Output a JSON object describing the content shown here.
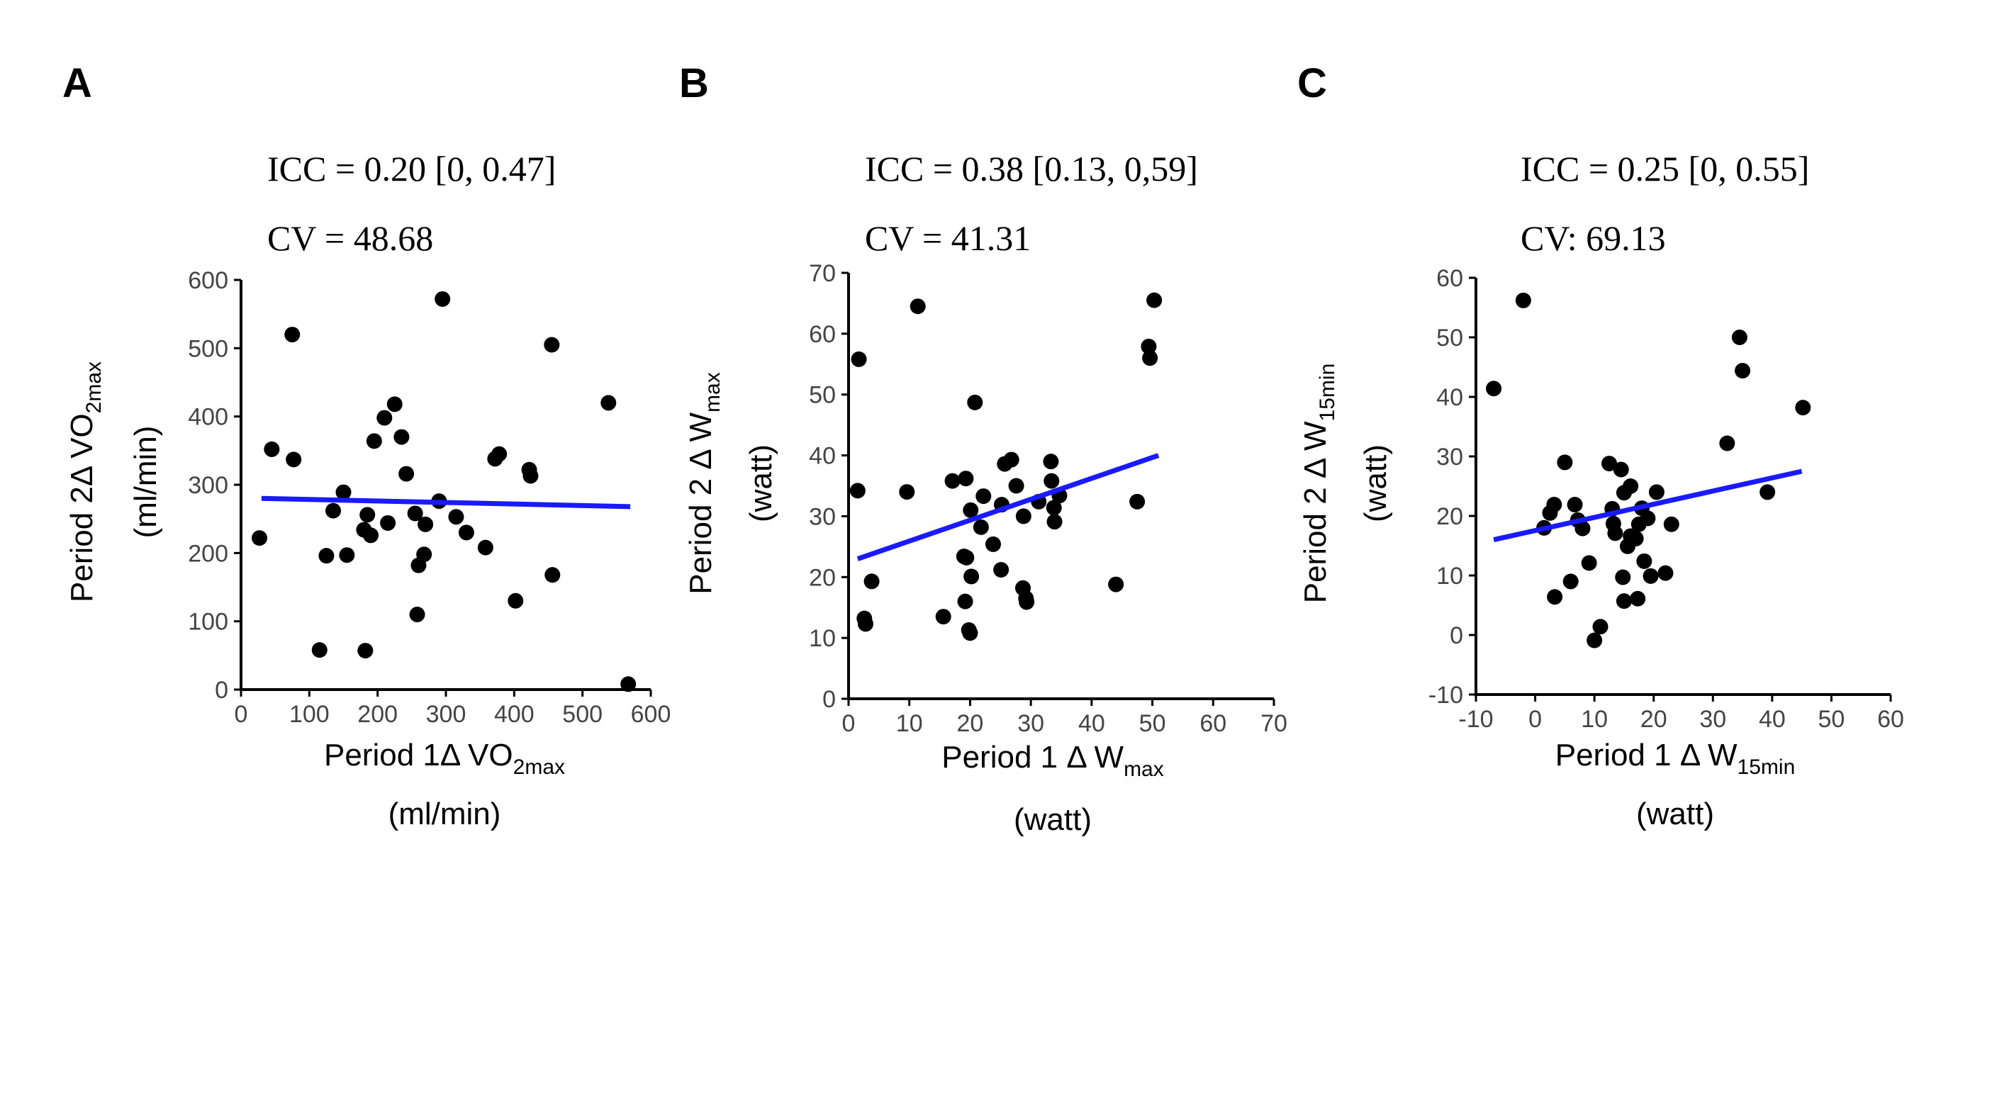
{
  "colors": {
    "points": "#000000",
    "fit_line": "#1a1aff",
    "axis": "#000000"
  },
  "panels": [
    {
      "letter": "A",
      "icc": "ICC = 0.20 [0, 0.47]",
      "cv": "CV = 48.68"
    },
    {
      "letter": "B",
      "icc": "ICC = 0.38 [0.13, 0,59]",
      "cv": "CV = 41.31"
    },
    {
      "letter": "C",
      "icc": "ICC = 0.25 [0, 0.55]",
      "cv": "CV: 69.13"
    }
  ],
  "chart_data": [
    {
      "type": "scatter",
      "xlabel": {
        "main": "Period 1Δ VO",
        "sub": "2max",
        "units": "(ml/min)"
      },
      "ylabel": {
        "main": "Period 2Δ VO",
        "sub": "2max",
        "units": "(ml/min)"
      },
      "xlim": [
        0,
        600
      ],
      "ylim": [
        0,
        600
      ],
      "xticks": [
        0,
        100,
        200,
        300,
        400,
        500,
        600
      ],
      "yticks": [
        0,
        100,
        200,
        300,
        400,
        500,
        600
      ],
      "grid": false,
      "fit_line": {
        "x": [
          30,
          570
        ],
        "y": [
          280,
          268
        ]
      },
      "points": [
        [
          27,
          222
        ],
        [
          45,
          352
        ],
        [
          75,
          520
        ],
        [
          77,
          337
        ],
        [
          115,
          58
        ],
        [
          125,
          196
        ],
        [
          135,
          262
        ],
        [
          150,
          289
        ],
        [
          155,
          197
        ],
        [
          180,
          234
        ],
        [
          182,
          57
        ],
        [
          185,
          256
        ],
        [
          190,
          226
        ],
        [
          195,
          364
        ],
        [
          210,
          398
        ],
        [
          215,
          244
        ],
        [
          225,
          418
        ],
        [
          235,
          370
        ],
        [
          242,
          316
        ],
        [
          255,
          258
        ],
        [
          258,
          110
        ],
        [
          260,
          182
        ],
        [
          268,
          198
        ],
        [
          270,
          242
        ],
        [
          290,
          276
        ],
        [
          295,
          572
        ],
        [
          315,
          253
        ],
        [
          330,
          230
        ],
        [
          358,
          208
        ],
        [
          372,
          338
        ],
        [
          378,
          345
        ],
        [
          402,
          130
        ],
        [
          422,
          322
        ],
        [
          424,
          313
        ],
        [
          455,
          505
        ],
        [
          456,
          168
        ],
        [
          538,
          420
        ],
        [
          567,
          8
        ]
      ]
    },
    {
      "type": "scatter",
      "xlabel": {
        "main": "Period 1 Δ W",
        "sub": "max",
        "units": "(watt)"
      },
      "ylabel": {
        "main": "Period 2 Δ W",
        "sub": "max",
        "units": "(watt)"
      },
      "xlim": [
        0,
        70
      ],
      "ylim": [
        0,
        70
      ],
      "xticks": [
        0,
        10,
        20,
        30,
        40,
        50,
        60,
        70
      ],
      "yticks": [
        0,
        10,
        20,
        30,
        40,
        50,
        60,
        70
      ],
      "grid": false,
      "fit_line": {
        "x": [
          1.5,
          51
        ],
        "y": [
          23,
          40
        ]
      },
      "points": [
        [
          1.5,
          34.2
        ],
        [
          1.7,
          55.8
        ],
        [
          2.6,
          13.2
        ],
        [
          2.8,
          12.3
        ],
        [
          3.8,
          19.3
        ],
        [
          9.6,
          34
        ],
        [
          11.4,
          64.5
        ],
        [
          15.6,
          13.5
        ],
        [
          17.1,
          35.8
        ],
        [
          19,
          23.4
        ],
        [
          19.2,
          16
        ],
        [
          19.3,
          36.2
        ],
        [
          19.4,
          23.2
        ],
        [
          19.8,
          11.3
        ],
        [
          20,
          10.8
        ],
        [
          20.1,
          31
        ],
        [
          20.2,
          20.1
        ],
        [
          20.8,
          48.7
        ],
        [
          21.8,
          28.2
        ],
        [
          22.2,
          33.3
        ],
        [
          23.8,
          25.4
        ],
        [
          25.1,
          21.2
        ],
        [
          25.2,
          31.9
        ],
        [
          25.7,
          38.6
        ],
        [
          26.8,
          39.3
        ],
        [
          27.6,
          35
        ],
        [
          28.7,
          18.2
        ],
        [
          28.8,
          30
        ],
        [
          29.2,
          16.5
        ],
        [
          29.3,
          15.9
        ],
        [
          31.3,
          32.4
        ],
        [
          33.3,
          39
        ],
        [
          33.4,
          35.8
        ],
        [
          33.8,
          31.4
        ],
        [
          33.9,
          29.1
        ],
        [
          34.7,
          33.4
        ],
        [
          44,
          18.8
        ],
        [
          47.5,
          32.4
        ],
        [
          49.4,
          57.9
        ],
        [
          49.6,
          56
        ],
        [
          50.3,
          65.5
        ]
      ]
    },
    {
      "type": "scatter",
      "xlabel": {
        "main": "Period 1 Δ W",
        "sub": "15min",
        "units": "(watt)"
      },
      "ylabel": {
        "main": "Period 2 Δ W",
        "sub": "15min",
        "units": "(watt)"
      },
      "xlim": [
        -10,
        60
      ],
      "ylim": [
        -10,
        60
      ],
      "xticks": [
        -10,
        0,
        10,
        20,
        30,
        40,
        50,
        60
      ],
      "yticks": [
        -10,
        0,
        10,
        20,
        30,
        40,
        50,
        60
      ],
      "grid": false,
      "fit_line": {
        "x": [
          -7,
          45
        ],
        "y": [
          16,
          27.5
        ]
      },
      "points": [
        [
          -7,
          41.4
        ],
        [
          -2,
          56.2
        ],
        [
          1.5,
          18
        ],
        [
          2.5,
          20.5
        ],
        [
          3.2,
          21.9
        ],
        [
          3.3,
          6.4
        ],
        [
          5,
          29
        ],
        [
          6,
          9
        ],
        [
          6.7,
          21.9
        ],
        [
          7.2,
          19.3
        ],
        [
          8,
          17.9
        ],
        [
          9.1,
          12.1
        ],
        [
          10,
          -0.9
        ],
        [
          11,
          1.4
        ],
        [
          12.5,
          28.8
        ],
        [
          13,
          21.2
        ],
        [
          13.2,
          18.7
        ],
        [
          13.5,
          17.1
        ],
        [
          14.5,
          27.8
        ],
        [
          14.8,
          9.7
        ],
        [
          15,
          5.7
        ],
        [
          15,
          23.9
        ],
        [
          15.6,
          14.9
        ],
        [
          16.1,
          25
        ],
        [
          16.1,
          16.6
        ],
        [
          17,
          16.2
        ],
        [
          17.3,
          6.1
        ],
        [
          17.5,
          18.6
        ],
        [
          18,
          21.3
        ],
        [
          18.4,
          12.4
        ],
        [
          19,
          19.6
        ],
        [
          19.5,
          9.9
        ],
        [
          20.5,
          24
        ],
        [
          22,
          10.4
        ],
        [
          23,
          18.6
        ],
        [
          32.4,
          32.2
        ],
        [
          34.5,
          50
        ],
        [
          35,
          44.4
        ],
        [
          39.2,
          24
        ],
        [
          45.2,
          38.2
        ]
      ]
    }
  ]
}
